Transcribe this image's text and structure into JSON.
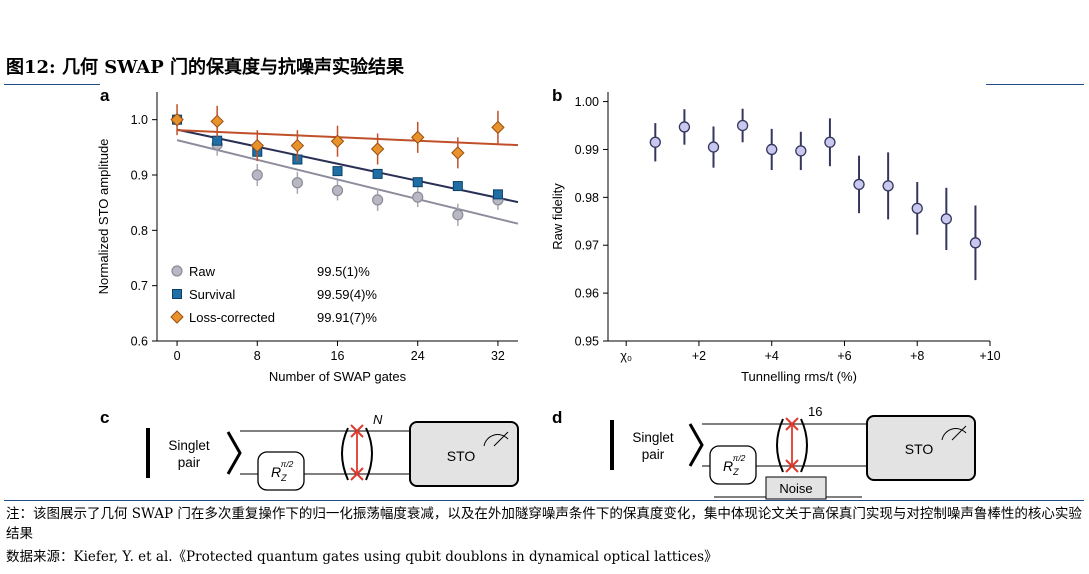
{
  "figure_title": "图12:  几何 SWAP 门的保真度与抗噪声实验结果",
  "note": "注：该图展示了几何 SWAP 门在多次重复操作下的归一化振荡幅度衰减，以及在外加隧穿噪声条件下的保真度变化，集中体现论文关于高保真门实现与对控制噪声鲁棒性的核心实验结果",
  "source": "数据来源：Kiefer, Y. et al.《Protected quantum gates using qubit doublons in dynamical optical lattices》",
  "panel_labels": {
    "a": "a",
    "b": "b",
    "c": "c",
    "d": "d"
  },
  "colors": {
    "raw": "#b8b8c4",
    "survival": "#1f6fa6",
    "loss": "#e8922c",
    "fit_loss": "#c0502a",
    "fit_main": "#2a2f55",
    "b_marker": "#c8c8ee",
    "b_err": "#34365e",
    "accent": "#1e4c8a"
  },
  "chart_data": [
    {
      "type": "scatter",
      "panel": "a",
      "xlabel": "Number of SWAP gates",
      "ylabel": "Normalized STO amplitude",
      "xlim": [
        -2,
        34
      ],
      "ylim": [
        0.6,
        1.05
      ],
      "xticks": [
        0,
        8,
        16,
        24,
        32
      ],
      "xtick_labels": [
        "0",
        "8",
        "16",
        "24",
        "32"
      ],
      "yticks": [
        0.6,
        0.7,
        0.8,
        0.9,
        1.0
      ],
      "ytick_labels": [
        "0.6",
        "0.7",
        "0.8",
        "0.9",
        "1.0"
      ],
      "legend": [
        {
          "name": "Raw",
          "value": "99.5(1)%"
        },
        {
          "name": "Survival",
          "value": "99.59(4)%"
        },
        {
          "name": "Loss-corrected",
          "value": "99.91(7)%"
        }
      ],
      "series": [
        {
          "name": "Raw",
          "marker": "circle",
          "x": [
            0,
            4,
            8,
            12,
            16,
            20,
            24,
            28,
            32
          ],
          "y": [
            1.0,
            0.955,
            0.9,
            0.886,
            0.872,
            0.855,
            0.86,
            0.828,
            0.855
          ],
          "err": [
            0.01,
            0.02,
            0.02,
            0.02,
            0.018,
            0.02,
            0.018,
            0.02,
            0.018
          ],
          "fit": {
            "x": [
              0,
              34
            ],
            "y": [
              0.963,
              0.812
            ]
          }
        },
        {
          "name": "Survival",
          "marker": "square",
          "x": [
            0,
            4,
            8,
            12,
            16,
            20,
            24,
            28,
            32
          ],
          "y": [
            1.0,
            0.962,
            0.942,
            0.928,
            0.907,
            0.902,
            0.887,
            0.88,
            0.865
          ],
          "err": [
            0.008,
            0.008,
            0.008,
            0.008,
            0.008,
            0.008,
            0.008,
            0.008,
            0.008
          ],
          "fit": {
            "x": [
              0,
              34
            ],
            "y": [
              0.982,
              0.851
            ]
          }
        },
        {
          "name": "Loss-corrected",
          "marker": "diamond",
          "x": [
            0,
            4,
            8,
            12,
            16,
            20,
            24,
            28,
            32
          ],
          "y": [
            1.0,
            0.997,
            0.953,
            0.953,
            0.961,
            0.947,
            0.968,
            0.94,
            0.986
          ],
          "err": [
            0.028,
            0.028,
            0.028,
            0.028,
            0.028,
            0.028,
            0.028,
            0.028,
            0.03
          ],
          "fit": {
            "x": [
              0,
              34
            ],
            "y": [
              0.981,
              0.954
            ]
          }
        }
      ]
    },
    {
      "type": "scatter",
      "panel": "b",
      "xlabel": "Tunnelling rms/t (%)",
      "ylabel": "Raw fidelity",
      "xlim": [
        -0.5,
        10
      ],
      "ylim": [
        0.95,
        1.002
      ],
      "xticks": [
        0,
        2,
        4,
        6,
        8,
        10
      ],
      "xtick_labels": [
        "χ₀",
        "+2",
        "+4",
        "+6",
        "+8",
        "+10"
      ],
      "yticks": [
        0.95,
        0.96,
        0.97,
        0.98,
        0.99,
        1.0
      ],
      "ytick_labels": [
        "0.95",
        "0.96",
        "0.97",
        "0.98",
        "0.99",
        "1.00"
      ],
      "series": [
        {
          "name": "Raw fidelity",
          "marker": "circle",
          "x": [
            0.8,
            1.6,
            2.4,
            3.2,
            4.0,
            4.8,
            5.6,
            6.4,
            7.2,
            8.0,
            8.8,
            9.6
          ],
          "y": [
            0.9915,
            0.9947,
            0.9905,
            0.995,
            0.99,
            0.9897,
            0.9915,
            0.9827,
            0.9824,
            0.9777,
            0.9755,
            0.9705
          ],
          "err": [
            0.004,
            0.0037,
            0.0043,
            0.0035,
            0.0043,
            0.004,
            0.005,
            0.006,
            0.007,
            0.0055,
            0.0065,
            0.0078
          ]
        }
      ]
    }
  ],
  "circuit_c": {
    "input": "Singlet\npair",
    "gate_base": "R",
    "gate_sub": "Z",
    "gate_sup": "π/2",
    "repeat": "N",
    "output": "STO"
  },
  "circuit_d": {
    "input": "Singlet\npair",
    "gate_base": "R",
    "gate_sub": "Z",
    "gate_sup": "π/2",
    "repeat": "16",
    "output": "STO",
    "noise": "Noise"
  }
}
